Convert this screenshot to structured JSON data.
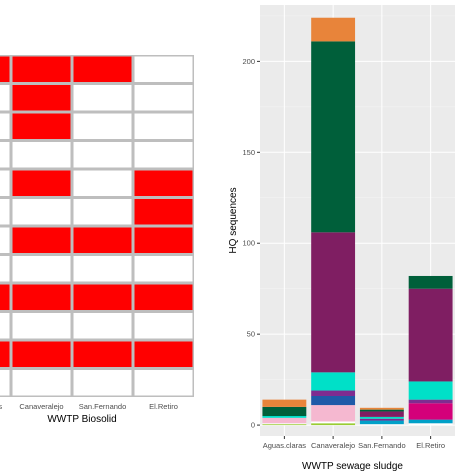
{
  "chart_data": [
    {
      "type": "heatmap",
      "xlabel": "WWTP Biosolid",
      "categories": [
        "Aguas.claras",
        "Canaveralejo",
        "San.Fernando",
        "El.Retiro"
      ],
      "rows": [
        [
          1,
          1,
          1,
          0
        ],
        [
          0,
          1,
          0,
          0
        ],
        [
          0,
          1,
          0,
          0
        ],
        [
          0,
          0,
          0,
          0
        ],
        [
          0,
          1,
          0,
          1
        ],
        [
          0,
          0,
          0,
          1
        ],
        [
          0,
          1,
          1,
          1
        ],
        [
          0,
          0,
          0,
          0
        ],
        [
          1,
          1,
          1,
          1
        ],
        [
          0,
          0,
          0,
          0
        ],
        [
          1,
          1,
          1,
          1
        ],
        [
          0,
          0,
          0,
          0
        ]
      ],
      "colors": {
        "present": "#ff0000",
        "absent": "#ffffff",
        "border": "#bebebe"
      }
    },
    {
      "type": "bar",
      "stacked": true,
      "xlabel": "WWTP sewage sludge",
      "ylabel": "HQ sequences",
      "ylim": [
        -6,
        231
      ],
      "yticks": [
        0,
        50,
        100,
        150,
        200
      ],
      "categories": [
        "Aguas.claras",
        "Canaveralejo",
        "San.Fernando",
        "El.Retiro"
      ],
      "grid": true,
      "background": "#ebebeb",
      "series": [
        {
          "color": "#9acd32",
          "values": [
            0.5,
            1,
            0,
            0
          ]
        },
        {
          "color": "#ffffff",
          "values": [
            0.5,
            1,
            0.5,
            1
          ]
        },
        {
          "color": "#f5b8d0",
          "values": [
            3,
            9,
            0,
            0
          ]
        },
        {
          "color": "#00a0c8",
          "values": [
            0,
            0,
            2,
            2
          ]
        },
        {
          "color": "#d4007a",
          "values": [
            0,
            0,
            0,
            9
          ]
        },
        {
          "color": "#1e5aa8",
          "values": [
            0,
            5,
            0,
            0
          ]
        },
        {
          "color": "#7e2c90",
          "values": [
            0,
            3,
            1,
            2
          ]
        },
        {
          "color": "#00e0c8",
          "values": [
            1,
            10,
            1,
            10
          ]
        },
        {
          "color": "#7f1e62",
          "values": [
            0,
            77,
            3,
            51
          ]
        },
        {
          "color": "#005f3a",
          "values": [
            5,
            105,
            1,
            7
          ]
        },
        {
          "color": "#e8843a",
          "values": [
            4,
            13,
            1,
            0
          ]
        }
      ]
    }
  ]
}
